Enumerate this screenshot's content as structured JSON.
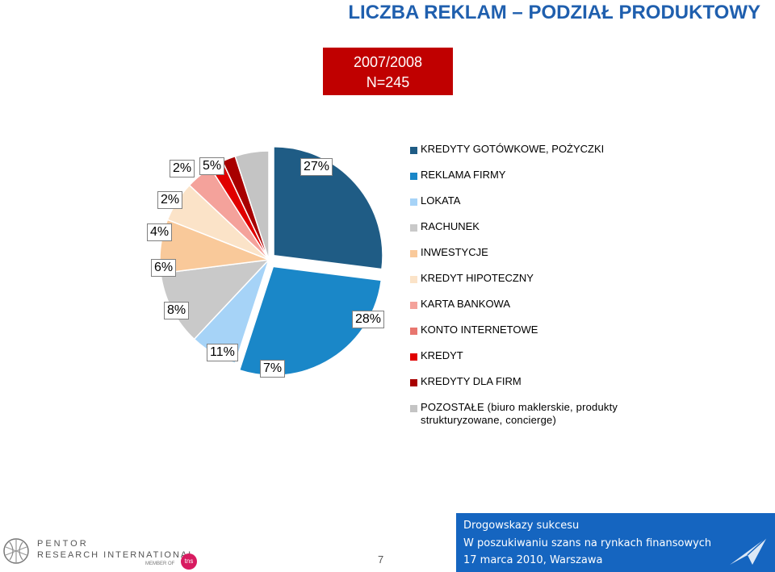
{
  "page": {
    "title": "LICZBA REKLAM – PODZIAŁ PRODUKTOWY",
    "period": "2007/2008",
    "sample": "N=245",
    "page_number": "7"
  },
  "chart_data": {
    "type": "pie",
    "start": "12 o'clock",
    "direction": "clockwise",
    "slices": [
      {
        "label": "KREDYTY GOTÓWKOWE, POŻYCZKI",
        "value": 27,
        "display": "27%",
        "color": "#1f5c85"
      },
      {
        "label": "REKLAMA FIRMY",
        "value": 28,
        "display": "28%",
        "color": "#1a87c8"
      },
      {
        "label": "LOKATA",
        "value": 7,
        "display": "7%",
        "color": "#a6d3f7"
      },
      {
        "label": "RACHUNEK",
        "value": 11,
        "display": "11%",
        "color": "#c9c9c9"
      },
      {
        "label": "INWESTYCJE",
        "value": 8,
        "display": "8%",
        "color": "#f9c99a"
      },
      {
        "label": "KREDYT HIPOTECZNY",
        "value": 6,
        "display": "6%",
        "color": "#fbe3c8"
      },
      {
        "label": "KARTA BANKOWA",
        "value": 4,
        "display": "4%",
        "color": "#f4a29b"
      },
      {
        "label": "KONTO INTERNETOWE",
        "value": 0,
        "display": "",
        "color": "#e8766f"
      },
      {
        "label": "KREDYT",
        "value": 2,
        "display": "2%",
        "color": "#e00000"
      },
      {
        "label": "KREDYTY DLA FIRM",
        "value": 2,
        "display": "2%",
        "color": "#a80000"
      },
      {
        "label": "POZOSTAŁE (biuro maklerskie, produkty strukturyzowane, concierge)",
        "value": 5,
        "display": "5%",
        "color": "#c4c4c4"
      }
    ],
    "legend_position": "right"
  },
  "footer": {
    "logo_line1": "PENTOR",
    "logo_line2": "RESEARCH INTERNATIONAL",
    "logo_line3": "MEMBER OF",
    "logo_badge": "tns",
    "banner_line1": "Drogowskazy sukcesu",
    "banner_line2": "W poszukiwaniu szans na rynkach finansowych",
    "banner_line3": "17 marca 2010, Warszawa"
  }
}
